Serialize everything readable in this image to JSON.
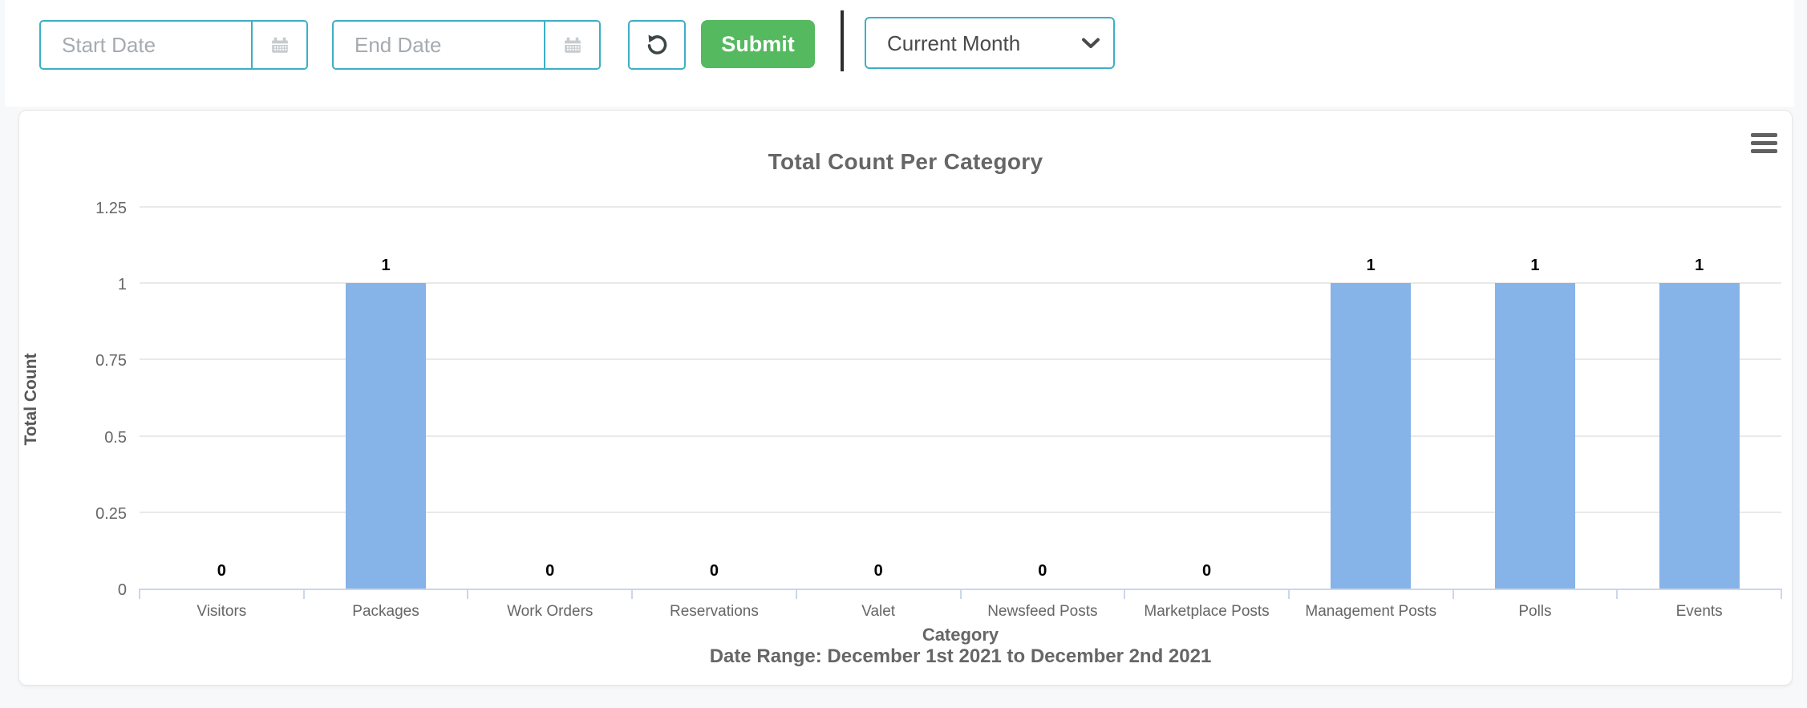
{
  "toolbar": {
    "start_date": {
      "value": "",
      "placeholder": "Start Date"
    },
    "end_date": {
      "value": "",
      "placeholder": "End Date"
    },
    "reset_icon": "rotate-left-icon",
    "submit_label": "Submit",
    "range_select": {
      "value": "Current Month",
      "options": [
        "Current Month"
      ]
    }
  },
  "card": {
    "menu_icon": "hamburger-menu-icon"
  },
  "colors": {
    "accent_teal": "#3dafc6",
    "submit_green": "#55b95f",
    "bar_blue": "#86b3e8",
    "axis_line": "#ccd6eb",
    "gridline": "#e9e9e9",
    "text_gray": "#666666",
    "page_bg": "#f7f8fa"
  },
  "chart_data": {
    "type": "bar",
    "title": "Total Count Per Category",
    "categories": [
      "Visitors",
      "Packages",
      "Work Orders",
      "Reservations",
      "Valet",
      "Newsfeed Posts",
      "Marketplace Posts",
      "Management Posts",
      "Polls",
      "Events"
    ],
    "values": [
      0,
      1,
      0,
      0,
      0,
      0,
      0,
      1,
      1,
      1
    ],
    "data_labels": [
      "0",
      "1",
      "0",
      "0",
      "0",
      "0",
      "0",
      "1",
      "1",
      "1"
    ],
    "xlabel": "Category",
    "x_sublabel": "Date Range: December 1st 2021 to December 2nd 2021",
    "ylabel": "Total Count",
    "ylim": [
      0,
      1.25
    ],
    "yticks": [
      0,
      0.25,
      0.5,
      0.75,
      1,
      1.25
    ],
    "grid": true,
    "legend": "none"
  }
}
